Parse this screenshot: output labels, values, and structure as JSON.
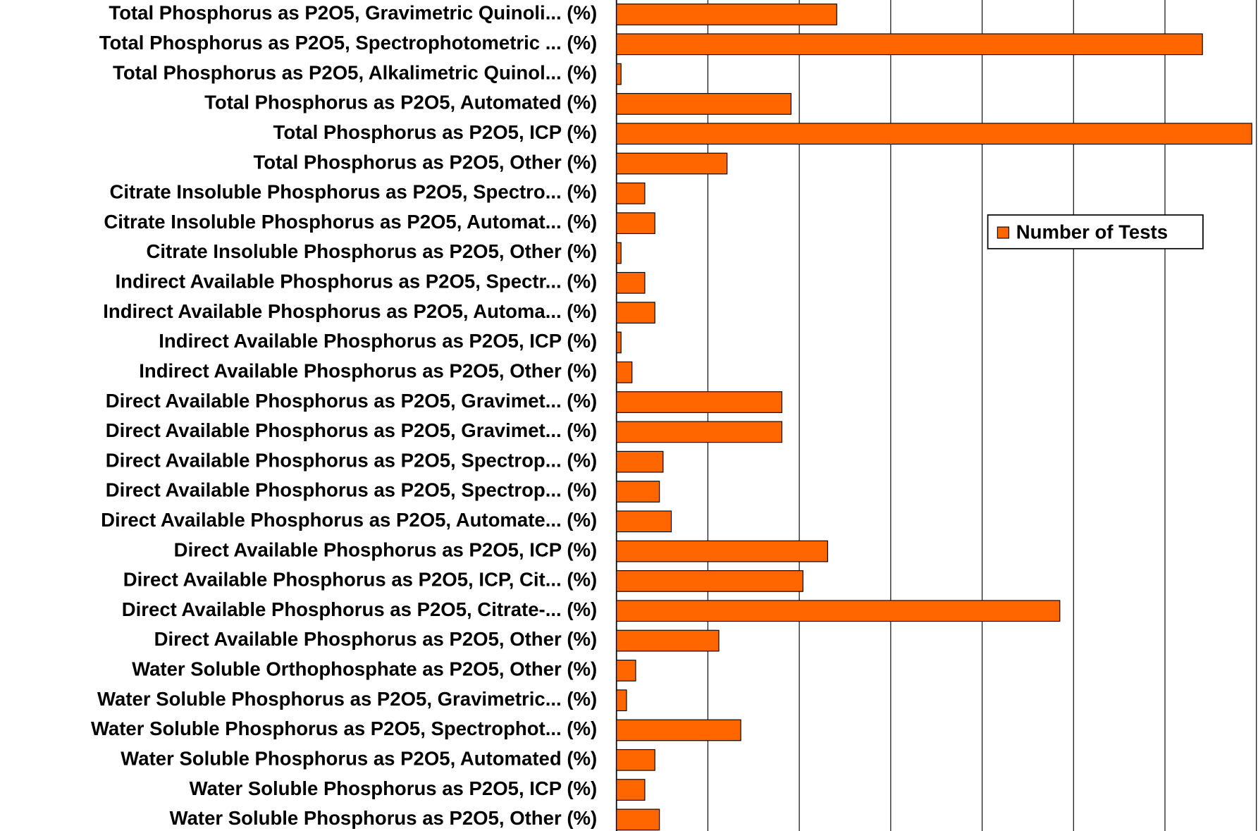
{
  "chart_data": {
    "type": "bar",
    "orientation": "horizontal",
    "categories": [
      "Total Phosphorus as P2O5, Gravimetric Quinoli... (%)",
      "Total Phosphorus as P2O5, Spectrophotometric ... (%)",
      "Total Phosphorus as P2O5, Alkalimetric Quinol... (%)",
      "Total Phosphorus as P2O5, Automated (%)",
      "Total Phosphorus as P2O5, ICP (%)",
      "Total Phosphorus as P2O5, Other (%)",
      "Citrate Insoluble Phosphorus as P2O5, Spectro... (%)",
      "Citrate Insoluble Phosphorus as P2O5, Automat... (%)",
      "Citrate Insoluble Phosphorus as P2O5, Other (%)",
      "Indirect Available Phosphorus as P2O5, Spectr... (%)",
      "Indirect Available Phosphorus as P2O5, Automa... (%)",
      "Indirect Available Phosphorus as P2O5, ICP (%)",
      "Indirect Available Phosphorus as P2O5, Other (%)",
      "Direct Available Phosphorus as P2O5, Gravimet... (%)",
      "Direct Available Phosphorus as P2O5, Gravimet... (%)",
      "Direct Available Phosphorus as P2O5, Spectrop... (%)",
      "Direct Available Phosphorus as P2O5, Spectrop... (%)",
      "Direct Available Phosphorus as P2O5, Automate... (%)",
      "Direct Available Phosphorus as P2O5, ICP (%)",
      "Direct Available Phosphorus as P2O5, ICP, Cit... (%)",
      "Direct Available Phosphorus as P2O5, Citrate-... (%)",
      "Direct Available Phosphorus as P2O5, Other (%)",
      "Water Soluble Orthophosphate as P2O5, Other (%)",
      "Water Soluble Phosphorus as P2O5, Gravimetric... (%)",
      "Water Soluble Phosphorus as P2O5, Spectrophot... (%)",
      "Water Soluble Phosphorus as P2O5, Automated (%)",
      "Water Soluble Phosphorus as P2O5, ICP (%)",
      "Water Soluble Phosphorus as P2O5, Other (%)"
    ],
    "series": [
      {
        "name": "Number of Tests",
        "color": "#ff6600",
        "values": [
          2.41,
          6.41,
          0.05,
          1.91,
          6.95,
          1.21,
          0.31,
          0.42,
          0.05,
          0.31,
          0.42,
          0.05,
          0.17,
          1.81,
          1.81,
          0.51,
          0.47,
          0.6,
          2.31,
          2.04,
          4.85,
          1.12,
          0.21,
          0.11,
          1.36,
          0.42,
          0.31,
          0.47
        ]
      }
    ],
    "xlim": [
      0,
      7
    ],
    "xticks": [
      0,
      1,
      2,
      3,
      4,
      5,
      6,
      7
    ],
    "grid": true,
    "legend": "right"
  }
}
